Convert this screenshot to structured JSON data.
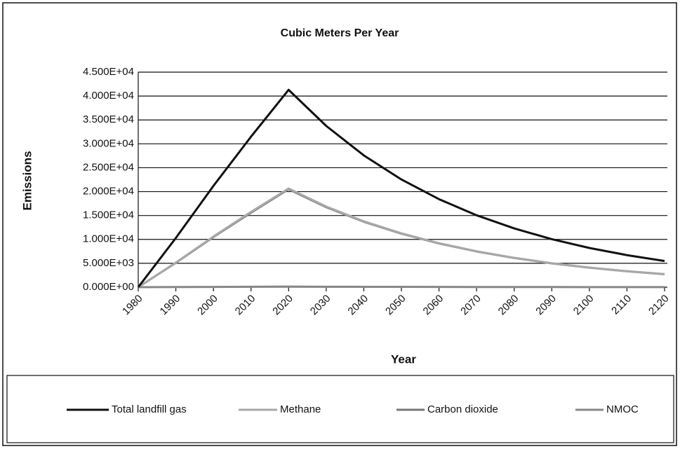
{
  "chart_data": {
    "type": "line",
    "title": "Cubic Meters Per Year",
    "xlabel": "Year",
    "ylabel": "Emissions",
    "x": [
      1980,
      1990,
      2000,
      2010,
      2020,
      2030,
      2040,
      2050,
      2060,
      2070,
      2080,
      2090,
      2100,
      2110,
      2120
    ],
    "series": [
      {
        "name": "Total landfill gas",
        "color": "#111111",
        "values": [
          0,
          10300,
          21200,
          31500,
          41300,
          33750,
          27580,
          22540,
          18420,
          15050,
          12300,
          10050,
          8210,
          6710,
          5480
        ]
      },
      {
        "name": "Methane",
        "color": "#a8a8a8",
        "values": [
          0,
          5150,
          10600,
          15750,
          20650,
          16870,
          13790,
          11270,
          9210,
          7520,
          6150,
          5020,
          4100,
          3350,
          2740
        ]
      },
      {
        "name": "Carbon dioxide",
        "color": "#777777",
        "values": [
          0,
          5100,
          10500,
          15600,
          20500,
          16750,
          13700,
          11200,
          9150,
          7480,
          6110,
          4990,
          4080,
          3330,
          2720
        ]
      },
      {
        "name": "NMOC",
        "color": "#888888",
        "values": [
          0,
          30,
          60,
          90,
          120,
          98,
          80,
          65,
          53,
          44,
          36,
          29,
          24,
          19,
          16
        ]
      }
    ],
    "xlim": [
      1980,
      2120
    ],
    "xticks": [
      1980,
      1990,
      2000,
      2010,
      2020,
      2030,
      2040,
      2050,
      2060,
      2070,
      2080,
      2090,
      2100,
      2110,
      2120
    ],
    "ylim": [
      0,
      45000
    ],
    "yticks": [
      {
        "value": 0,
        "label": "0.000E+00"
      },
      {
        "value": 5000,
        "label": "5.000E+03"
      },
      {
        "value": 10000,
        "label": "1.000E+04"
      },
      {
        "value": 15000,
        "label": "1.500E+04"
      },
      {
        "value": 20000,
        "label": "2.000E+04"
      },
      {
        "value": 25000,
        "label": "2.500E+04"
      },
      {
        "value": 30000,
        "label": "3.000E+04"
      },
      {
        "value": 35000,
        "label": "3.500E+04"
      },
      {
        "value": 40000,
        "label": "4.000E+04"
      },
      {
        "value": 45000,
        "label": "4.500E+04"
      }
    ],
    "grid": true,
    "legend": "bottom"
  }
}
